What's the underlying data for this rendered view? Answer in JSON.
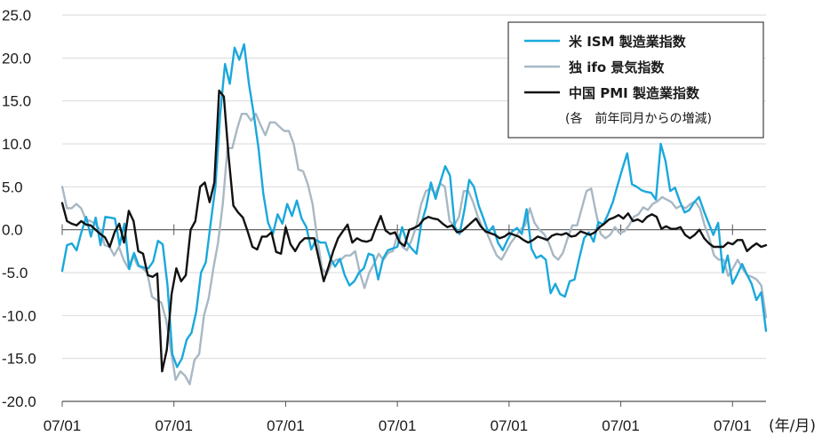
{
  "chart_data": {
    "type": "line",
    "title": "",
    "xlabel": "",
    "ylabel": "",
    "x_unit_label": "(年/月)",
    "ylim": [
      -20,
      25
    ],
    "y_ticks": [
      25,
      20,
      15,
      10,
      5,
      0,
      -5,
      -10,
      -15,
      -20
    ],
    "y_tick_labels": [
      "25.0",
      "20.0",
      "15.0",
      "10.0",
      "5.0",
      "0.0",
      "-5.0",
      "-10.0",
      "-15.0",
      "-20.0"
    ],
    "x_range": [
      0,
      126
    ],
    "x_tick_positions": [
      0,
      20,
      40,
      60,
      80,
      100,
      120
    ],
    "x_tick_labels": [
      "07/01",
      "07/01",
      "07/01",
      "07/01",
      "07/01",
      "07/01",
      "07/01"
    ],
    "grid": "horizontal",
    "legend_position": "top-right",
    "legend_note": "(各　前年同月からの増減)",
    "series": [
      {
        "name": "米 ISM 製造業指数",
        "color": "#1aa8dc",
        "values": [
          -4.8,
          -1.8,
          -1.6,
          -2.4,
          -0.3,
          1.5,
          -0.8,
          1.4,
          -1.8,
          1.5,
          1.4,
          1.3,
          -1.8,
          0.7,
          -4.6,
          -2.7,
          -4.2,
          -4.4,
          -4.5,
          -3.7,
          -1.3,
          -1.7,
          -6.5,
          -14.5,
          -16.0,
          -15.0,
          -12.8,
          -12.0,
          -9.5,
          -5.0,
          -3.8,
          0.7,
          5.0,
          13.5,
          19.3,
          17.0,
          21.2,
          19.8,
          21.6,
          17.0,
          13.5,
          9.5,
          4.2,
          0.8,
          -0.5,
          1.8,
          0.7,
          3.0,
          1.6,
          3.4,
          1.3,
          0.3,
          -2.3,
          -1.2,
          -1.5,
          -1.5,
          -3.3,
          -4.3,
          -3.4,
          -5.3,
          -6.5,
          -6.0,
          -5.0,
          -4.5,
          -2.8,
          -3.0,
          -5.8,
          -3.4,
          -2.4,
          -2.2,
          -2.0,
          0.3,
          -1.5,
          -2.2,
          -2.8,
          0.7,
          2.6,
          5.5,
          3.6,
          5.6,
          7.4,
          6.3,
          0.3,
          -0.5,
          2.3,
          5.8,
          5.0,
          2.8,
          1.3,
          -0.3,
          0.4,
          -1.5,
          -2.4,
          -1.2,
          -0.2,
          0.2,
          -0.5,
          2.4,
          -2.2,
          -3.3,
          -3.0,
          -3.5,
          -7.4,
          -6.3,
          -7.5,
          -7.8,
          -6.0,
          -5.8,
          -3.3,
          -1.0,
          -0.3,
          -1.4,
          0.9,
          0.6,
          1.8,
          3.2,
          5.2,
          7.1,
          8.9,
          5.3,
          5.0,
          4.6,
          4.4,
          4.3,
          3.5,
          10.0,
          8.0,
          4.5,
          4.9,
          3.3,
          2.0,
          2.3,
          3.2,
          3.8,
          2.2,
          0.8,
          -0.6,
          0.8,
          -5.0,
          -3.0,
          -6.3,
          -5.2,
          -4.0,
          -5.2,
          -6.3,
          -8.2,
          -7.3,
          -11.8
        ]
      },
      {
        "name": "独 ifo 景気指数",
        "color": "#a8b8c4",
        "values": [
          5.0,
          2.5,
          2.5,
          3.0,
          2.5,
          1.2,
          1.0,
          0.7,
          0.0,
          -1.8,
          -2.0,
          -3.0,
          -2.0,
          -3.5,
          -4.5,
          -3.0,
          -4.2,
          -4.5,
          -5.0,
          -7.8,
          -8.2,
          -8.5,
          -10.5,
          -14.0,
          -17.5,
          -16.5,
          -17.0,
          -18.0,
          -15.2,
          -14.5,
          -10.0,
          -8.0,
          -4.5,
          -1.5,
          3.0,
          9.5,
          9.5,
          11.7,
          13.5,
          13.5,
          12.7,
          13.5,
          12.2,
          11.0,
          12.5,
          12.5,
          12.0,
          11.5,
          11.5,
          10.0,
          7.0,
          6.8,
          5.3,
          3.0,
          -1.0,
          -4.5,
          -5.2,
          -4.0,
          -3.5,
          -3.5,
          -3.0,
          -3.0,
          -2.5,
          -5.0,
          -6.8,
          -5.0,
          -4.0,
          -2.8,
          -3.5,
          -2.7,
          -2.5,
          -0.5,
          -2.0,
          -2.4,
          -1.2,
          0.5,
          3.0,
          4.5,
          4.8,
          4.2,
          5.4,
          5.0,
          1.0,
          0.5,
          1.5,
          4.5,
          4.5,
          3.2,
          1.5,
          0.2,
          -0.5,
          -1.8,
          -3.0,
          -3.5,
          -2.5,
          -1.5,
          -0.8,
          0.0,
          0.5,
          2.5,
          0.8,
          0.0,
          -0.5,
          -1.5,
          -3.0,
          -3.5,
          -2.7,
          -1.0,
          0.5,
          0.5,
          2.5,
          4.5,
          4.8,
          2.0,
          -0.5,
          -1.0,
          -0.6,
          0.3,
          -0.4,
          -0.2,
          0.5,
          1.5,
          1.8,
          2.6,
          2.3,
          3.0,
          3.3,
          3.8,
          3.5,
          3.2,
          2.5,
          2.8,
          2.5,
          3.0,
          3.3,
          2.5,
          0.5,
          -1.0,
          -3.0,
          -3.5,
          -3.5,
          -5.4,
          -4.5,
          -3.5,
          -4.5,
          -5.3,
          -5.5,
          -5.8,
          -6.5,
          -10.2
        ]
      },
      {
        "name": "中国 PMI 製造業指数",
        "color": "#111111",
        "values": [
          3.1,
          1.0,
          0.7,
          0.5,
          1.0,
          0.6,
          0.5,
          0.0,
          -0.5,
          -0.9,
          -2.0,
          -0.3,
          0.7,
          -1.5,
          2.2,
          1.0,
          -2.5,
          -2.8,
          -5.3,
          -5.5,
          -5.1,
          -16.5,
          -14.0,
          -7.5,
          -4.5,
          -6.0,
          -5.3,
          0.0,
          1.0,
          5.0,
          5.5,
          3.2,
          5.5,
          16.2,
          15.5,
          8.5,
          2.8,
          2.0,
          1.4,
          -0.2,
          -2.0,
          -2.3,
          -0.8,
          -0.8,
          -0.3,
          -2.6,
          -2.8,
          0.3,
          -1.7,
          -2.5,
          -1.5,
          -1.0,
          -1.0,
          -1.0,
          -3.5,
          -6.0,
          -4.3,
          -2.5,
          -1.0,
          -0.2,
          0.6,
          -1.5,
          -1.0,
          -1.3,
          -1.4,
          -1.2,
          0.3,
          1.6,
          -0.1,
          -0.5,
          -0.3,
          -1.5,
          -1.9,
          0.0,
          0.2,
          0.5,
          1.2,
          1.5,
          1.3,
          1.2,
          0.7,
          0.3,
          0.5,
          -0.3,
          -0.2,
          0.3,
          0.8,
          1.3,
          0.4,
          -0.2,
          -0.4,
          -0.6,
          -1.0,
          -0.8,
          -0.4,
          -0.6,
          -0.8,
          -1.2,
          -1.5,
          -1.2,
          -0.8,
          -1.0,
          -1.2,
          -0.7,
          -0.5,
          -0.6,
          -0.4,
          -0.8,
          -0.7,
          -0.2,
          -0.4,
          -0.6,
          -0.3,
          0.3,
          0.7,
          1.2,
          1.4,
          1.7,
          1.3,
          1.9,
          1.0,
          1.2,
          0.9,
          1.5,
          1.8,
          1.5,
          0.1,
          0.4,
          0.1,
          0.1,
          0.3,
          -0.6,
          -1.0,
          -0.6,
          0.0,
          -1.0,
          -1.6,
          -2.0,
          -2.0,
          -2.0,
          -1.5,
          -1.7,
          -1.2,
          -1.2,
          -2.5,
          -2.0,
          -1.6,
          -2.0,
          -1.8
        ]
      }
    ]
  }
}
